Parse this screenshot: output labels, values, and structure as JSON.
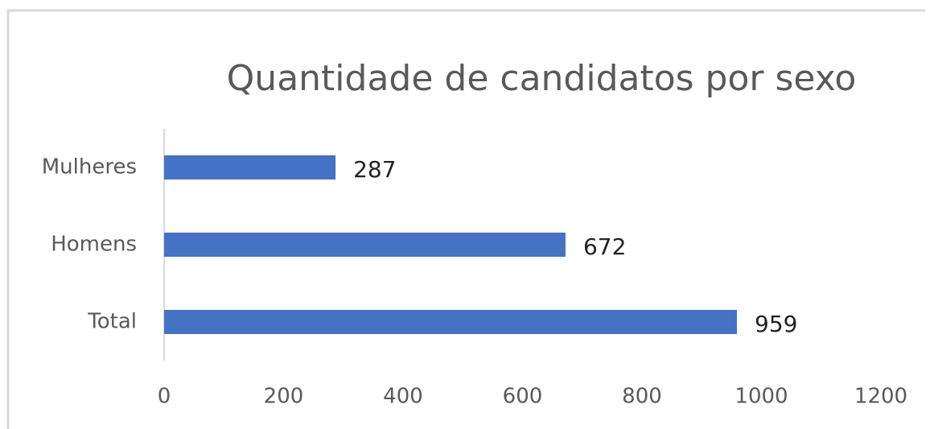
{
  "chart_data": {
    "type": "barh",
    "title": "Quantidade de candidatos por sexo",
    "categories": [
      "Mulheres",
      "Homens",
      "Total"
    ],
    "values": [
      287,
      672,
      959
    ],
    "color": "#4472c4",
    "xlim": [
      0,
      1200
    ],
    "xticks": [
      0,
      200,
      400,
      600,
      800,
      1000,
      1200
    ],
    "grid": false
  }
}
